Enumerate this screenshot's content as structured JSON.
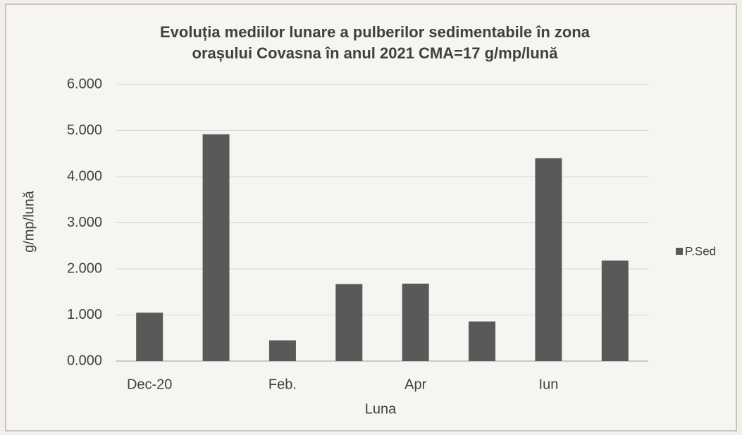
{
  "chart_data": {
    "type": "bar",
    "title": [
      "Evoluția mediilor lunare a pulberilor sedimentabile în zona",
      "orașului Covasna în anul 2021    CMA=17 g/mp/lună"
    ],
    "x_label": "Luna",
    "y_label": "g/mp/lună",
    "categories": [
      "Dec-20",
      null,
      "Feb.",
      null,
      "Apr",
      null,
      "Iun",
      null
    ],
    "series": [
      {
        "name": "P.Sed",
        "color": "#595959",
        "values": [
          1.05,
          4.92,
          0.45,
          1.67,
          1.68,
          0.86,
          4.4,
          2.18
        ]
      }
    ],
    "ylim": [
      0,
      6
    ],
    "yticks": [
      {
        "value": 0,
        "label": "0.000"
      },
      {
        "value": 1,
        "label": "1.000"
      },
      {
        "value": 2,
        "label": "2.000"
      },
      {
        "value": 3,
        "label": "3.000"
      },
      {
        "value": 4,
        "label": "4.000"
      },
      {
        "value": 5,
        "label": "5.000"
      },
      {
        "value": 6,
        "label": "6.000"
      }
    ],
    "grid": true,
    "legend": "right"
  }
}
